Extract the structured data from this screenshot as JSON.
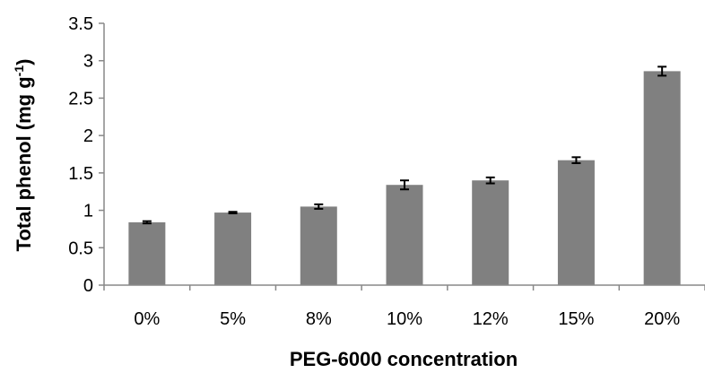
{
  "chart_data": {
    "type": "bar",
    "categories": [
      "0%",
      "5%",
      "8%",
      "10%",
      "12%",
      "15%",
      "20%"
    ],
    "values": [
      0.84,
      0.97,
      1.05,
      1.34,
      1.4,
      1.67,
      2.86
    ],
    "errors": [
      0.015,
      0.01,
      0.03,
      0.06,
      0.04,
      0.04,
      0.06
    ],
    "xlabel": "PEG-6000 concentration",
    "ylabel_main": "Total phenol (mg g",
    "ylabel_sup": "-1",
    "ylabel_tail": ")",
    "ylim": [
      0,
      3.5
    ],
    "yticks": [
      "0",
      "0.5",
      "1",
      "1.5",
      "2",
      "2.5",
      "3",
      "3.5"
    ],
    "bar_color": "#808080",
    "grid": false
  }
}
